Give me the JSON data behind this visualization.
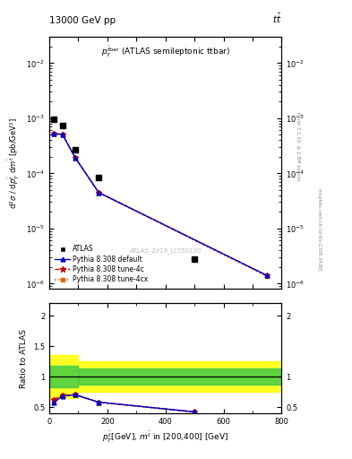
{
  "title_left": "13000 GeV pp",
  "title_right": "t$\\bar{t}$",
  "right_label_top": "Rivet 3.1.10, ≥ 2.8M events",
  "right_label_bot": "mcplots.cern.ch [arXiv:1306.3436]",
  "atlas_ref": "ATLAS_2019_I1750330",
  "data_x": [
    15,
    45,
    90,
    170,
    500,
    750
  ],
  "atlas_y": [
    0.00095,
    0.00075,
    0.00027,
    8.5e-05,
    2.8e-06,
    null
  ],
  "pythia_default_y": [
    0.00052,
    0.00051,
    0.00019,
    4.5e-05,
    null,
    1.4e-06
  ],
  "pythia_4c_y": [
    0.00052,
    0.00051,
    0.00019,
    4.5e-05,
    null,
    1.4e-06
  ],
  "pythia_4cx_y": [
    0.00052,
    0.00051,
    0.00019,
    4.45e-05,
    null,
    1.35e-06
  ],
  "ratio_x": [
    15,
    45,
    90,
    170,
    500
  ],
  "ratio_default": [
    0.57,
    0.68,
    0.7,
    0.58,
    0.42
  ],
  "ratio_4c": [
    0.62,
    0.69,
    0.7,
    0.58,
    0.42
  ],
  "ratio_4cx": [
    0.62,
    0.69,
    0.7,
    0.575,
    0.415
  ],
  "xlim": [
    0,
    800
  ],
  "ylim_main": [
    8e-07,
    0.03
  ],
  "ylim_ratio": [
    0.4,
    2.2
  ],
  "color_default": "#0000cc",
  "color_4c": "#cc0000",
  "color_4cx": "#dd6600",
  "color_atlas": "#000000",
  "legend_entries": [
    "ATLAS",
    "Pythia 8.308 default",
    "Pythia 8.308 tune-4c",
    "Pythia 8.308 tune-4cx"
  ]
}
